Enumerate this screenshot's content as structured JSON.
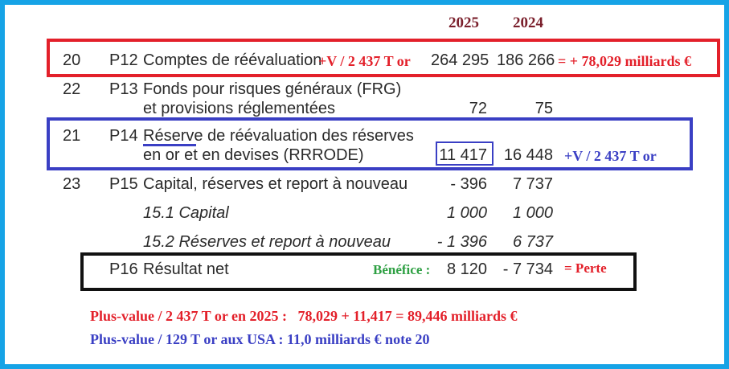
{
  "header": {
    "year_2025": "2025",
    "year_2024": "2024"
  },
  "rows": [
    {
      "note": "20",
      "code": "P12",
      "label": "Comptes de réévaluation",
      "v2025": "264 295",
      "v2024": "186 266"
    },
    {
      "note": "22",
      "code": "P13",
      "label_line1": "Fonds pour risques généraux (FRG)",
      "label_line2": "et provisions réglementées",
      "v2025": "72",
      "v2024": "75"
    },
    {
      "note": "21",
      "code": "P14",
      "label_line1": "Réserve de réévaluation des réserves",
      "label_line2": "en or et en devises (RRRODE)",
      "v2025": "11 417",
      "v2024": "16 448"
    },
    {
      "note": "23",
      "code": "P15",
      "label": "Capital, réserves et report à nouveau",
      "v2025": "- 396",
      "v2024": "7 737"
    },
    {
      "label": "15.1 Capital",
      "v2025": "1 000",
      "v2024": "1 000"
    },
    {
      "label": "15.2 Réserves et report à nouveau",
      "v2025": "- 1 396",
      "v2024": "6 737"
    },
    {
      "code": "P16",
      "label": "Résultat net",
      "v2025": "8 120",
      "v2024": "- 7 734"
    }
  ],
  "annotations": {
    "p12_plus_value": "+V / 2 437 T or",
    "p12_total": "= + 78,029 milliards €",
    "p14_plus_value": "+V / 2 437 T or",
    "p16_benefice": "Bénéfice :",
    "p16_perte": "= Perte",
    "footer_red": "Plus-value / 2 437 T or en 2025 :   78,029 + 11,417 = 89,446 milliards €",
    "footer_blue": "Plus-value / 129 T or aux USA : 11,0 milliards € note 20"
  },
  "colors": {
    "frame": "#16a3e6",
    "red": "#e3202a",
    "blue": "#3a3fc4",
    "black": "#111111",
    "green": "#2ea043",
    "year": "#7a1f2b"
  }
}
